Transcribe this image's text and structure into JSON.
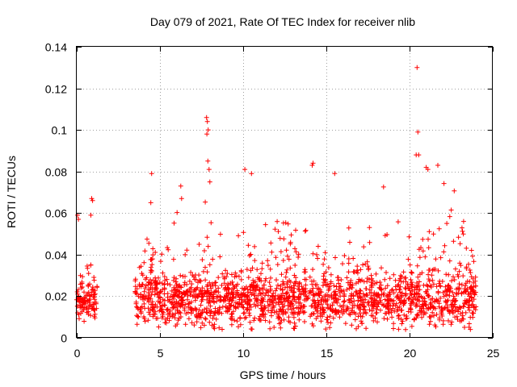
{
  "chart_data": {
    "type": "scatter",
    "title": "Day 079 of 2021, Rate Of TEC Index for receiver nlib",
    "xlabel": "GPS time / hours",
    "ylabel": "ROTI / TECUs",
    "xlim": [
      0,
      24
    ],
    "ylim": [
      0,
      0.14
    ],
    "x_ticks": [
      0,
      5,
      10,
      15,
      20,
      25
    ],
    "x_tick_labels": [
      "0",
      "5",
      "10",
      "15",
      "20",
      "25"
    ],
    "y_ticks": [
      0,
      0.02,
      0.04,
      0.06,
      0.08,
      0.1,
      0.12,
      0.14
    ],
    "y_tick_labels": [
      "0",
      "0.02",
      "0.04",
      "0.06",
      "0.08",
      "0.1",
      "0.12",
      "0.14"
    ],
    "grid": true,
    "marker": "+",
    "color": "#ff0000",
    "series": [
      {
        "name": "ROTI",
        "segments": [
          {
            "x_start": 0.0,
            "x_end": 1.25,
            "base": 0.017,
            "spread": 0.008
          },
          {
            "x_start": 3.5,
            "x_end": 24.0,
            "base": 0.018,
            "spread": 0.012
          }
        ],
        "notable_points": [
          {
            "x": 0.05,
            "y": 0.059
          },
          {
            "x": 0.1,
            "y": 0.057
          },
          {
            "x": 0.9,
            "y": 0.067
          },
          {
            "x": 0.95,
            "y": 0.066
          },
          {
            "x": 0.85,
            "y": 0.059
          },
          {
            "x": 4.5,
            "y": 0.079
          },
          {
            "x": 4.45,
            "y": 0.065
          },
          {
            "x": 6.25,
            "y": 0.073
          },
          {
            "x": 6.3,
            "y": 0.067
          },
          {
            "x": 7.8,
            "y": 0.106
          },
          {
            "x": 7.85,
            "y": 0.104
          },
          {
            "x": 7.9,
            "y": 0.1
          },
          {
            "x": 7.82,
            "y": 0.098
          },
          {
            "x": 7.88,
            "y": 0.085
          },
          {
            "x": 7.95,
            "y": 0.081
          },
          {
            "x": 8.0,
            "y": 0.075
          },
          {
            "x": 10.1,
            "y": 0.081
          },
          {
            "x": 10.5,
            "y": 0.079
          },
          {
            "x": 14.2,
            "y": 0.084
          },
          {
            "x": 14.15,
            "y": 0.083
          },
          {
            "x": 15.5,
            "y": 0.079
          },
          {
            "x": 20.45,
            "y": 0.13
          },
          {
            "x": 20.5,
            "y": 0.099
          },
          {
            "x": 20.4,
            "y": 0.088
          },
          {
            "x": 20.55,
            "y": 0.088
          },
          {
            "x": 21.0,
            "y": 0.082
          },
          {
            "x": 21.1,
            "y": 0.081
          },
          {
            "x": 21.7,
            "y": 0.083
          }
        ]
      }
    ]
  }
}
